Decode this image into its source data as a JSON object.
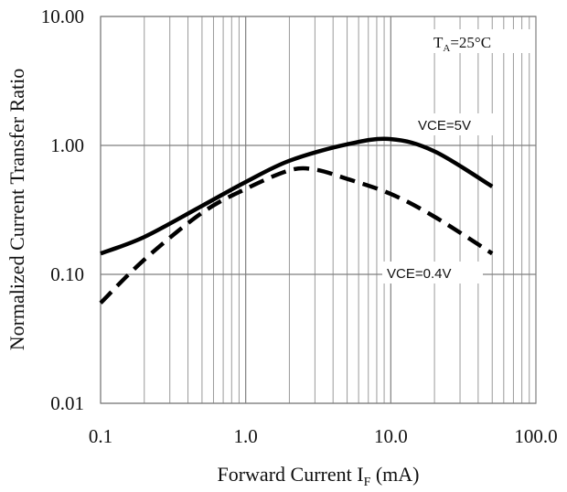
{
  "chart_data": {
    "type": "line",
    "xscale": "log",
    "yscale": "log",
    "xlim": [
      0.1,
      100
    ],
    "ylim": [
      0.01,
      10
    ],
    "grid": true,
    "xticks": [
      "0.1",
      "1.0",
      "10.0",
      "100.0"
    ],
    "yticks": [
      "0.01",
      "0.10",
      "1.00",
      "10.00"
    ],
    "xlabel_main": "Forward Current I",
    "xlabel_sub": "F",
    "xlabel_unit": " (mA)",
    "ylabel": "Normalized Current Transfer Ratio",
    "condition_main": "T",
    "condition_sub": "A",
    "condition_rest": "=25°C",
    "series": [
      {
        "name": "VCE=5V",
        "style": "solid",
        "color": "#000000",
        "x": [
          0.1,
          0.2,
          0.5,
          1,
          2,
          5,
          10,
          20,
          50
        ],
        "y": [
          0.145,
          0.195,
          0.34,
          0.52,
          0.76,
          1.02,
          1.12,
          0.9,
          0.48
        ]
      },
      {
        "name": "VCE=0.4V",
        "style": "dashed",
        "color": "#000000",
        "x": [
          0.1,
          0.2,
          0.5,
          1,
          2,
          3,
          5,
          10,
          20,
          50
        ],
        "y": [
          0.06,
          0.13,
          0.3,
          0.46,
          0.64,
          0.65,
          0.55,
          0.42,
          0.28,
          0.145
        ]
      }
    ]
  }
}
